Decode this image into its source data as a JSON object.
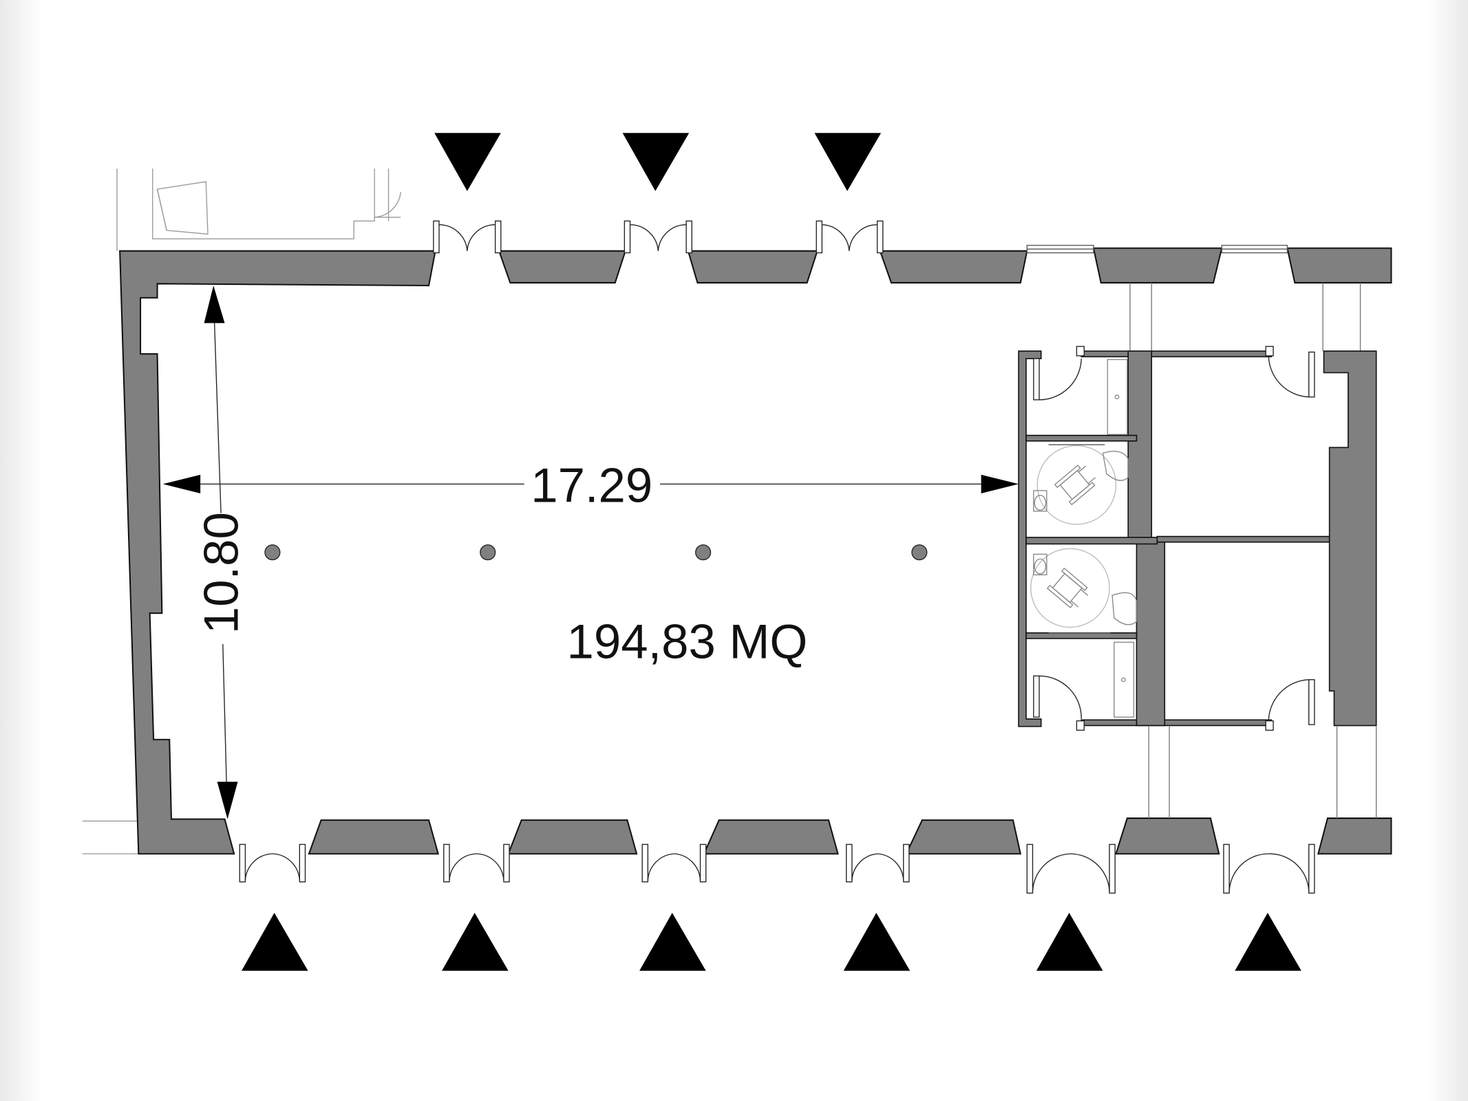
{
  "plan": {
    "dimension_length": "17.29",
    "dimension_width": "10.80",
    "area": "194,83 MQ"
  },
  "colors": {
    "wall": "#808080",
    "wall_stroke": "#111111",
    "line": "#222222",
    "thin": "#9a9a9a",
    "pillar": "#808080"
  },
  "icons": {
    "entrance_marker": "triangle",
    "pillar": "circle",
    "door": "door-swing-arc",
    "toilet": "accessible-wc"
  }
}
